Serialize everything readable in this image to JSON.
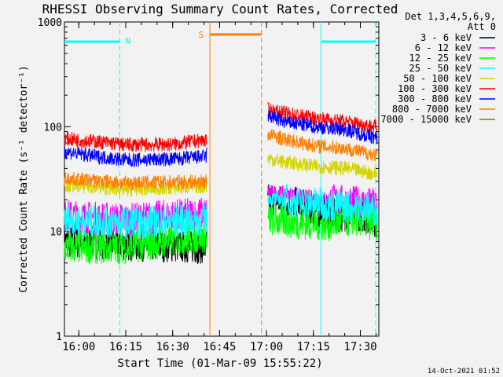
{
  "chart_data": {
    "type": "line",
    "title": "RHESSI Observing Summary Count Rates, Corrected",
    "xlabel": "Start Time (01-Mar-09 15:55:22)",
    "ylabel": "Corrected Count Rate (s⁻¹ detector⁻¹)",
    "y_scale": "log",
    "ylim": [
      1,
      1000
    ],
    "xlim_minutes_after_start": [
      0,
      100.5
    ],
    "x_ticks": [
      {
        "label": "16:00",
        "minute": 4.6
      },
      {
        "label": "16:15",
        "minute": 19.6
      },
      {
        "label": "16:30",
        "minute": 34.6
      },
      {
        "label": "16:45",
        "minute": 49.6
      },
      {
        "label": "17:00",
        "minute": 64.6
      },
      {
        "label": "17:15",
        "minute": 79.6
      },
      {
        "label": "17:30",
        "minute": 94.6
      }
    ],
    "y_ticks": [
      {
        "label": "1",
        "value": 1
      },
      {
        "label": "10",
        "value": 10
      },
      {
        "label": "100",
        "value": 100
      },
      {
        "label": "1000",
        "value": 1000
      }
    ],
    "legend": {
      "placement": "right",
      "header": [
        "Det 1,3,4,5,6,9,",
        "Att 0"
      ]
    },
    "series": [
      {
        "name": "3 - 6 keV",
        "color": "#000000",
        "segments": [
          [
            [
              0,
              8
            ],
            [
              45.5,
              7
            ]
          ],
          [
            [
              65,
              20
            ],
            [
              73,
              19
            ],
            [
              80,
              16
            ],
            [
              88,
              14
            ],
            [
              92,
              15
            ],
            [
              100,
              12.5
            ]
          ]
        ]
      },
      {
        "name": "6 - 12 keV",
        "color": "#ff00ff",
        "segments": [
          [
            [
              0,
              14
            ],
            [
              20,
              13
            ],
            [
              45.5,
              15
            ]
          ],
          [
            [
              65,
              24
            ],
            [
              75,
              22
            ],
            [
              85,
              20
            ],
            [
              100,
              18
            ]
          ]
        ]
      },
      {
        "name": "12 - 25 keV",
        "color": "#00ff00",
        "segments": [
          [
            [
              0,
              7
            ],
            [
              20,
              7
            ],
            [
              45.5,
              9
            ]
          ],
          [
            [
              65,
              13
            ],
            [
              75,
              12
            ],
            [
              85,
              11.5
            ],
            [
              92,
              13
            ],
            [
              100,
              11.5
            ]
          ]
        ]
      },
      {
        "name": "25 - 50 keV",
        "color": "#00ffff",
        "segments": [
          [
            [
              0,
              13
            ],
            [
              20,
              12
            ],
            [
              45.5,
              13
            ]
          ],
          [
            [
              65,
              21
            ],
            [
              75,
              19
            ],
            [
              85,
              18
            ],
            [
              100,
              16
            ]
          ]
        ]
      },
      {
        "name": "50 - 100 keV",
        "color": "#d4d400",
        "segments": [
          [
            [
              0,
              28
            ],
            [
              20,
              25
            ],
            [
              45.5,
              27
            ]
          ],
          [
            [
              65,
              50
            ],
            [
              70,
              46
            ],
            [
              80,
              42
            ],
            [
              90,
              40
            ],
            [
              100,
              35
            ]
          ]
        ]
      },
      {
        "name": "100 - 300 keV",
        "color": "#ff0000",
        "segments": [
          [
            [
              0,
              77
            ],
            [
              10,
              72
            ],
            [
              20,
              67
            ],
            [
              35,
              68
            ],
            [
              45.5,
              75
            ]
          ],
          [
            [
              65,
              145
            ],
            [
              70,
              135
            ],
            [
              80,
              120
            ],
            [
              90,
              112
            ],
            [
              100,
              99
            ]
          ]
        ]
      },
      {
        "name": "300 - 800 keV",
        "color": "#0000ff",
        "segments": [
          [
            [
              0,
              58
            ],
            [
              10,
              52
            ],
            [
              20,
              48
            ],
            [
              35,
              49
            ],
            [
              45.5,
              52
            ]
          ],
          [
            [
              65,
              128
            ],
            [
              70,
              112
            ],
            [
              80,
              100
            ],
            [
              90,
              94
            ],
            [
              100,
              77
            ]
          ]
        ]
      },
      {
        "name": "800 - 7000 keV",
        "color": "#ff8000",
        "segments": [
          [
            [
              0,
              32
            ],
            [
              20,
              29
            ],
            [
              45.5,
              30
            ]
          ],
          [
            [
              65,
              85
            ],
            [
              70,
              76
            ],
            [
              80,
              66
            ],
            [
              90,
              62
            ],
            [
              100,
              53
            ]
          ]
        ]
      },
      {
        "name": "7000 - 15000 keV",
        "color": "#808000",
        "segments": []
      }
    ],
    "annotations": {
      "night_bars": [
        {
          "label": "N",
          "color": "#00ffff",
          "start": 0,
          "end": 17.7,
          "value": 650
        },
        {
          "label": "",
          "color": "#00ffff",
          "start": 82,
          "end": 99.5,
          "value": 650
        }
      ],
      "saa_bars": [
        {
          "label": "S",
          "color": "#ff8000",
          "start": 46.5,
          "end": 63,
          "value": 760
        }
      ],
      "vlines": [
        {
          "color": "#00ffff",
          "minute": 17.7,
          "dashed": true
        },
        {
          "color": "#ff8000",
          "minute": 46.5,
          "dashed": false
        },
        {
          "color": "#ff8000",
          "minute": 63,
          "dashed": true
        },
        {
          "color": "#00ffff",
          "minute": 82,
          "dashed": false
        },
        {
          "color": "#00ffff",
          "minute": 99.5,
          "dashed": true
        }
      ]
    },
    "timestamp": "14-Oct-2021 01:52"
  }
}
